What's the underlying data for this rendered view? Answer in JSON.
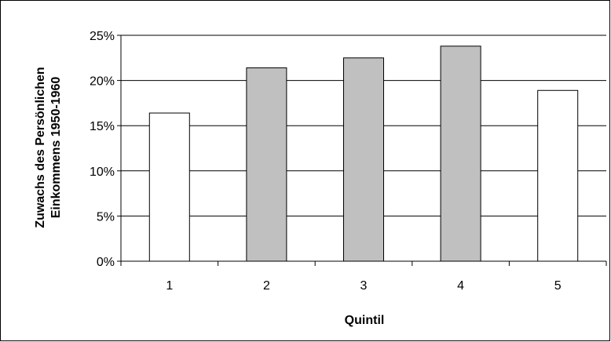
{
  "chart_data": {
    "type": "bar",
    "categories": [
      "1",
      "2",
      "3",
      "4",
      "5"
    ],
    "values": [
      16.4,
      21.4,
      22.5,
      23.8,
      18.9
    ],
    "bar_colors": [
      "#ffffff",
      "#c0c0c0",
      "#c0c0c0",
      "#c0c0c0",
      "#ffffff"
    ],
    "bar_stroke": "#000000",
    "xlabel": "Quintil",
    "ylabel_lines": [
      "Zuwachs des Persönlichen",
      "Einkommens 1950-1960"
    ],
    "ylim": [
      0,
      25
    ],
    "yticks": [
      "0%",
      "5%",
      "10%",
      "15%",
      "20%",
      "25%"
    ],
    "grid": "horizontal",
    "legend": "none"
  }
}
